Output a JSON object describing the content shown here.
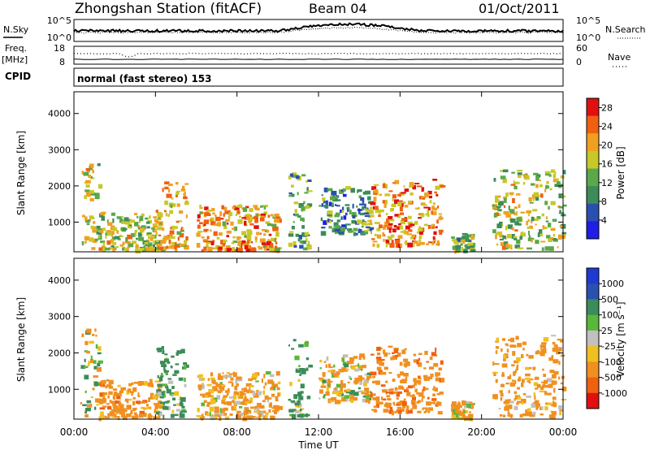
{
  "header": {
    "title": "Zhongshan Station (fitACF)",
    "beam": "Beam 04",
    "date": "01/Oct/2011"
  },
  "top_panels": {
    "nsky_label": "N.Sky",
    "nsky_ticks": [
      "10^5",
      "10^0"
    ],
    "nsearch_label": "N.Search",
    "nsearch_ticks": [
      "10^5",
      "10^0"
    ],
    "freq_label_1": "Freq.",
    "freq_label_2": "[MHz]",
    "freq_ticks": [
      "18",
      "8"
    ],
    "nave_label": "Nave",
    "nave_ticks": [
      "60",
      "0"
    ],
    "cpid_label": "CPID",
    "cpid_text": "normal (fast stereo) 153"
  },
  "colors": {
    "power_scale": [
      "#1e1ee6",
      "#2a4fb0",
      "#3b8c5a",
      "#5aa84a",
      "#c8c828",
      "#f0a020",
      "#f06010",
      "#e01010"
    ],
    "velocity_scale": [
      "#e01010",
      "#f06010",
      "#f09020",
      "#f0c020",
      "#c0c0c0",
      "#58b838",
      "#3b8c5a",
      "#2a50b0",
      "#1e3ad0"
    ],
    "axis": "#000000"
  },
  "chart_data": [
    {
      "type": "heatmap",
      "title": "Power",
      "ylabel": "Slant Range [km]",
      "xlabel": "",
      "ylim": [
        180,
        4600
      ],
      "yticks": [
        "1000",
        "2000",
        "3000",
        "4000"
      ],
      "xticks": [
        "00:00",
        "04:00",
        "08:00",
        "12:00",
        "16:00",
        "20:00",
        "00:00"
      ],
      "colorbar": {
        "label": "Power [dB]",
        "ticks": [
          "4",
          "8",
          "12",
          "16",
          "20",
          "24",
          "28"
        ],
        "range": [
          0,
          30
        ]
      },
      "echo_regions": [
        {
          "t": [
            0.3,
            1.2
          ],
          "r": [
            300,
            2700
          ],
          "level": 17
        },
        {
          "t": [
            1.2,
            4.2
          ],
          "r": [
            250,
            1300
          ],
          "level": 16
        },
        {
          "t": [
            4.0,
            5.5
          ],
          "r": [
            300,
            2200
          ],
          "level": 19
        },
        {
          "t": [
            6.0,
            10.0
          ],
          "r": [
            250,
            1500
          ],
          "level": 21
        },
        {
          "t": [
            10.5,
            11.5
          ],
          "r": [
            300,
            2400
          ],
          "level": 12
        },
        {
          "t": [
            12.0,
            14.5
          ],
          "r": [
            700,
            2000
          ],
          "level": 10
        },
        {
          "t": [
            14.5,
            18.0
          ],
          "r": [
            400,
            2200
          ],
          "level": 22
        },
        {
          "t": [
            18.5,
            19.5
          ],
          "r": [
            250,
            700
          ],
          "level": 14
        },
        {
          "t": [
            20.5,
            24.0
          ],
          "r": [
            300,
            2500
          ],
          "level": 16
        }
      ]
    },
    {
      "type": "heatmap",
      "title": "Velocity",
      "ylabel": "Slant Range [km]",
      "xlabel": "Time UT",
      "ylim": [
        180,
        4600
      ],
      "yticks": [
        "1000",
        "2000",
        "3000",
        "4000"
      ],
      "xticks": [
        "00:00",
        "04:00",
        "08:00",
        "12:00",
        "16:00",
        "20:00",
        "00:00"
      ],
      "colorbar": {
        "label": "Velocity [m s⁻¹]",
        "ticks": [
          "1000",
          "500",
          "100",
          "25",
          "-25",
          "-100",
          "-500",
          "-1000"
        ],
        "range": [
          -1000,
          1000
        ]
      },
      "echo_regions": [
        {
          "t": [
            0.3,
            1.2
          ],
          "r": [
            300,
            2700
          ],
          "v": 10
        },
        {
          "t": [
            1.2,
            4.2
          ],
          "r": [
            250,
            1300
          ],
          "v": -300
        },
        {
          "t": [
            4.0,
            5.5
          ],
          "r": [
            300,
            2200
          ],
          "v": 200
        },
        {
          "t": [
            6.0,
            10.0
          ],
          "r": [
            250,
            1500
          ],
          "v": -200
        },
        {
          "t": [
            10.5,
            11.5
          ],
          "r": [
            300,
            2400
          ],
          "v": 150
        },
        {
          "t": [
            12.0,
            14.5
          ],
          "r": [
            700,
            2000
          ],
          "v": -100
        },
        {
          "t": [
            14.5,
            18.0
          ],
          "r": [
            400,
            2200
          ],
          "v": -350
        },
        {
          "t": [
            18.5,
            19.5
          ],
          "r": [
            250,
            700
          ],
          "v": -150
        },
        {
          "t": [
            20.5,
            24.0
          ],
          "r": [
            300,
            2500
          ],
          "v": -250
        }
      ]
    }
  ]
}
